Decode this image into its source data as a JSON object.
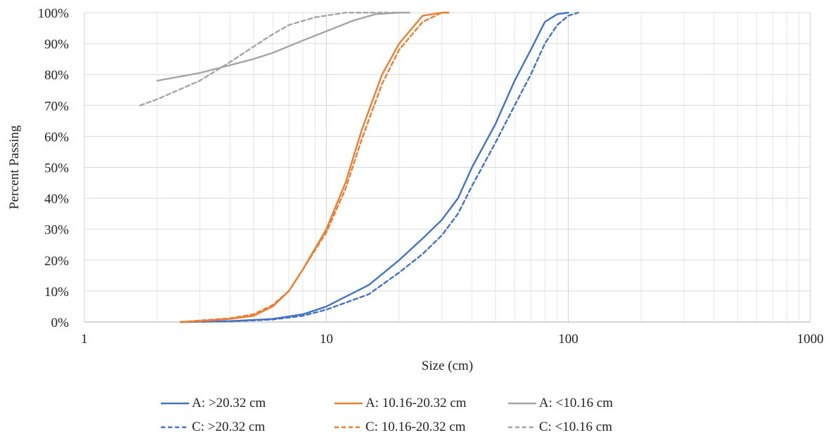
{
  "chart_data": {
    "type": "line",
    "title": "",
    "xlabel": "Size (cm)",
    "ylabel": "Percent Passing",
    "x_scale": "log",
    "xlim": [
      1,
      1000
    ],
    "ylim": [
      0,
      100
    ],
    "x_ticks": [
      1,
      10,
      100,
      1000
    ],
    "x_tick_labels": [
      "1",
      "10",
      "100",
      "1000"
    ],
    "y_ticks": [
      0,
      10,
      20,
      30,
      40,
      50,
      60,
      70,
      80,
      90,
      100
    ],
    "y_tick_labels": [
      "0%",
      "10%",
      "20%",
      "30%",
      "40%",
      "50%",
      "60%",
      "70%",
      "80%",
      "90%",
      "100%"
    ],
    "grid": true,
    "legend_position": "bottom",
    "series": [
      {
        "name": "A: >20.32 cm",
        "color": "#4472C4",
        "dash": "solid",
        "points": [
          [
            2.5,
            0
          ],
          [
            4,
            0.3
          ],
          [
            6,
            1
          ],
          [
            8,
            2.5
          ],
          [
            10,
            5
          ],
          [
            15,
            12
          ],
          [
            20,
            20
          ],
          [
            25,
            27
          ],
          [
            30,
            33
          ],
          [
            35,
            40
          ],
          [
            40,
            50
          ],
          [
            50,
            64
          ],
          [
            60,
            78
          ],
          [
            70,
            88
          ],
          [
            80,
            97
          ],
          [
            90,
            99.5
          ],
          [
            100,
            100
          ]
        ]
      },
      {
        "name": "C: >20.32 cm",
        "color": "#4472C4",
        "dash": "dashed",
        "points": [
          [
            2.5,
            0
          ],
          [
            4,
            0.2
          ],
          [
            6,
            0.8
          ],
          [
            8,
            2
          ],
          [
            10,
            4
          ],
          [
            15,
            9
          ],
          [
            20,
            16
          ],
          [
            25,
            22
          ],
          [
            30,
            28
          ],
          [
            35,
            35
          ],
          [
            40,
            44
          ],
          [
            50,
            58
          ],
          [
            60,
            70
          ],
          [
            70,
            80
          ],
          [
            80,
            90
          ],
          [
            90,
            96
          ],
          [
            100,
            99
          ],
          [
            110,
            100
          ]
        ]
      },
      {
        "name": "A: 10.16-20.32 cm",
        "color": "#ED7D31",
        "dash": "solid",
        "points": [
          [
            2.5,
            0
          ],
          [
            3,
            0.3
          ],
          [
            4,
            1
          ],
          [
            5,
            2
          ],
          [
            6,
            5
          ],
          [
            7,
            10
          ],
          [
            8,
            17
          ],
          [
            10,
            30
          ],
          [
            12,
            45
          ],
          [
            14,
            62
          ],
          [
            17,
            80
          ],
          [
            20,
            90
          ],
          [
            25,
            99
          ],
          [
            30,
            100
          ],
          [
            32,
            100
          ]
        ]
      },
      {
        "name": "C: 10.16-20.32 cm",
        "color": "#ED7D31",
        "dash": "dashed",
        "points": [
          [
            2.5,
            0
          ],
          [
            3,
            0.5
          ],
          [
            4,
            1.2
          ],
          [
            5,
            2.5
          ],
          [
            6,
            5.5
          ],
          [
            7,
            10
          ],
          [
            8,
            17
          ],
          [
            10,
            29
          ],
          [
            12,
            43
          ],
          [
            14,
            59
          ],
          [
            17,
            77
          ],
          [
            20,
            88
          ],
          [
            25,
            97
          ],
          [
            30,
            100
          ],
          [
            32,
            100
          ]
        ]
      },
      {
        "name": "A: <10.16 cm",
        "color": "#A5A5A5",
        "dash": "solid",
        "points": [
          [
            2,
            78
          ],
          [
            3,
            80.5
          ],
          [
            4,
            83
          ],
          [
            5,
            85
          ],
          [
            6,
            87
          ],
          [
            8,
            91
          ],
          [
            10,
            94
          ],
          [
            13,
            97.5
          ],
          [
            16,
            99.5
          ],
          [
            20,
            100
          ],
          [
            22,
            100
          ]
        ]
      },
      {
        "name": "C: <10.16 cm",
        "color": "#A5A5A5",
        "dash": "dashed",
        "points": [
          [
            1.7,
            70
          ],
          [
            2,
            72
          ],
          [
            3,
            78
          ],
          [
            4,
            84
          ],
          [
            5,
            89
          ],
          [
            6,
            93
          ],
          [
            7,
            96
          ],
          [
            9,
            98.5
          ],
          [
            12,
            100
          ],
          [
            16,
            100
          ],
          [
            22,
            100
          ]
        ]
      }
    ]
  }
}
